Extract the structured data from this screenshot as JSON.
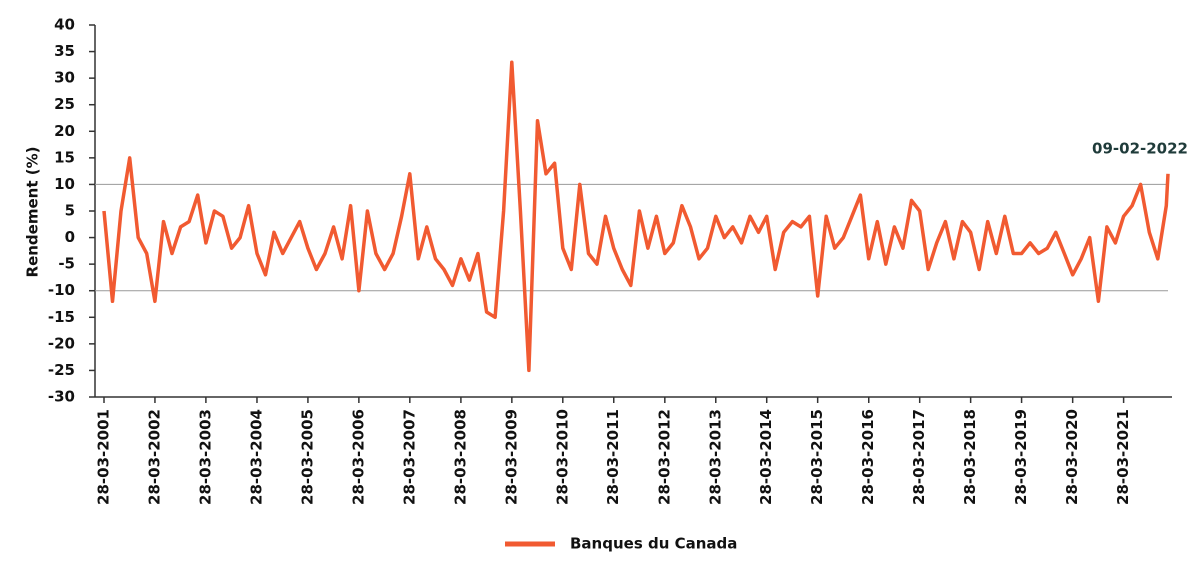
{
  "chart_data": {
    "type": "line",
    "ylabel": "Rendement (%)",
    "annotation": "09-02-2022",
    "x": [
      "28-03-2001",
      "28-05-2001",
      "28-07-2001",
      "28-09-2001",
      "28-11-2001",
      "28-01-2002",
      "28-03-2002",
      "28-05-2002",
      "28-07-2002",
      "28-09-2002",
      "28-11-2002",
      "28-01-2003",
      "28-03-2003",
      "28-05-2003",
      "28-07-2003",
      "28-09-2003",
      "28-11-2003",
      "28-01-2004",
      "28-03-2004",
      "28-05-2004",
      "28-07-2004",
      "28-09-2004",
      "28-11-2004",
      "28-01-2005",
      "28-03-2005",
      "28-05-2005",
      "28-07-2005",
      "28-09-2005",
      "28-11-2005",
      "28-01-2006",
      "28-03-2006",
      "28-05-2006",
      "28-07-2006",
      "28-09-2006",
      "28-11-2006",
      "28-01-2007",
      "28-03-2007",
      "28-05-2007",
      "28-07-2007",
      "28-09-2007",
      "28-11-2007",
      "28-01-2008",
      "28-03-2008",
      "28-05-2008",
      "28-07-2008",
      "28-09-2008",
      "28-11-2008",
      "28-01-2009",
      "28-03-2009",
      "28-05-2009",
      "28-07-2009",
      "28-09-2009",
      "28-11-2009",
      "28-01-2010",
      "28-03-2010",
      "28-05-2010",
      "28-07-2010",
      "28-09-2010",
      "28-11-2010",
      "28-01-2011",
      "28-03-2011",
      "28-05-2011",
      "28-07-2011",
      "28-09-2011",
      "28-11-2011",
      "28-01-2012",
      "28-03-2012",
      "28-05-2012",
      "28-07-2012",
      "28-09-2012",
      "28-11-2012",
      "28-01-2013",
      "28-03-2013",
      "28-05-2013",
      "28-07-2013",
      "28-09-2013",
      "28-11-2013",
      "28-01-2014",
      "28-03-2014",
      "28-05-2014",
      "28-07-2014",
      "28-09-2014",
      "28-11-2014",
      "28-01-2015",
      "28-03-2015",
      "28-05-2015",
      "28-07-2015",
      "28-09-2015",
      "28-11-2015",
      "28-01-2016",
      "28-03-2016",
      "28-05-2016",
      "28-07-2016",
      "28-09-2016",
      "28-11-2016",
      "28-01-2017",
      "28-03-2017",
      "28-05-2017",
      "28-07-2017",
      "28-09-2017",
      "28-11-2017",
      "28-01-2018",
      "28-03-2018",
      "28-05-2018",
      "28-07-2018",
      "28-09-2018",
      "28-11-2018",
      "28-01-2019",
      "28-03-2019",
      "28-05-2019",
      "28-07-2019",
      "28-09-2019",
      "28-11-2019",
      "28-01-2020",
      "28-03-2020",
      "28-05-2020",
      "28-07-2020",
      "28-09-2020",
      "28-11-2020",
      "28-01-2021",
      "28-03-2021",
      "28-05-2021",
      "28-07-2021",
      "28-09-2021",
      "28-11-2021",
      "28-01-2022",
      "09-02-2022"
    ],
    "series": [
      {
        "name": "Banques du Canada",
        "color": "#f15a31",
        "values": [
          5,
          -12,
          5,
          15,
          0,
          -3,
          -12,
          3,
          -3,
          2,
          3,
          8,
          -1,
          5,
          4,
          -2,
          0,
          6,
          -3,
          -7,
          1,
          -3,
          0,
          3,
          -2,
          -6,
          -3,
          2,
          -4,
          6,
          -10,
          5,
          -3,
          -6,
          -3,
          4,
          12,
          -4,
          2,
          -4,
          -6,
          -9,
          -4,
          -8,
          -3,
          -14,
          -15,
          5,
          33,
          5,
          -25,
          22,
          12,
          14,
          -2,
          -6,
          10,
          -3,
          -5,
          4,
          -2,
          -6,
          -9,
          5,
          -2,
          4,
          -3,
          -1,
          6,
          2,
          -4,
          -2,
          4,
          0,
          2,
          -1,
          4,
          1,
          4,
          -6,
          1,
          3,
          2,
          4,
          -11,
          4,
          -2,
          0,
          4,
          8,
          -4,
          3,
          -5,
          2,
          -2,
          7,
          5,
          -6,
          -1,
          3,
          -4,
          3,
          1,
          -6,
          3,
          -3,
          4,
          -3,
          -3,
          -1,
          -3,
          -2,
          1,
          -3,
          -7,
          -4,
          0,
          -12,
          2,
          -1,
          4,
          6,
          10,
          1,
          -4,
          6,
          12
        ]
      }
    ],
    "xlim": [
      "28-03-2001",
      "09-02-2022"
    ],
    "xticks": [
      "28-03-2001",
      "28-03-2002",
      "28-03-2003",
      "28-03-2004",
      "28-03-2005",
      "28-03-2006",
      "28-03-2007",
      "28-03-2008",
      "28-03-2009",
      "28-03-2010",
      "28-03-2011",
      "28-03-2012",
      "28-03-2013",
      "28-03-2014",
      "28-03-2015",
      "28-03-2016",
      "28-03-2017",
      "28-03-2018",
      "28-03-2019",
      "28-03-2020",
      "28-03-2021"
    ],
    "ylim": [
      -30,
      40
    ],
    "yticks": [
      -30,
      -25,
      -20,
      -15,
      -10,
      -5,
      0,
      5,
      10,
      15,
      20,
      25,
      30,
      35,
      40
    ],
    "reference_lines": [
      10,
      -10
    ],
    "legend": "bottom"
  }
}
